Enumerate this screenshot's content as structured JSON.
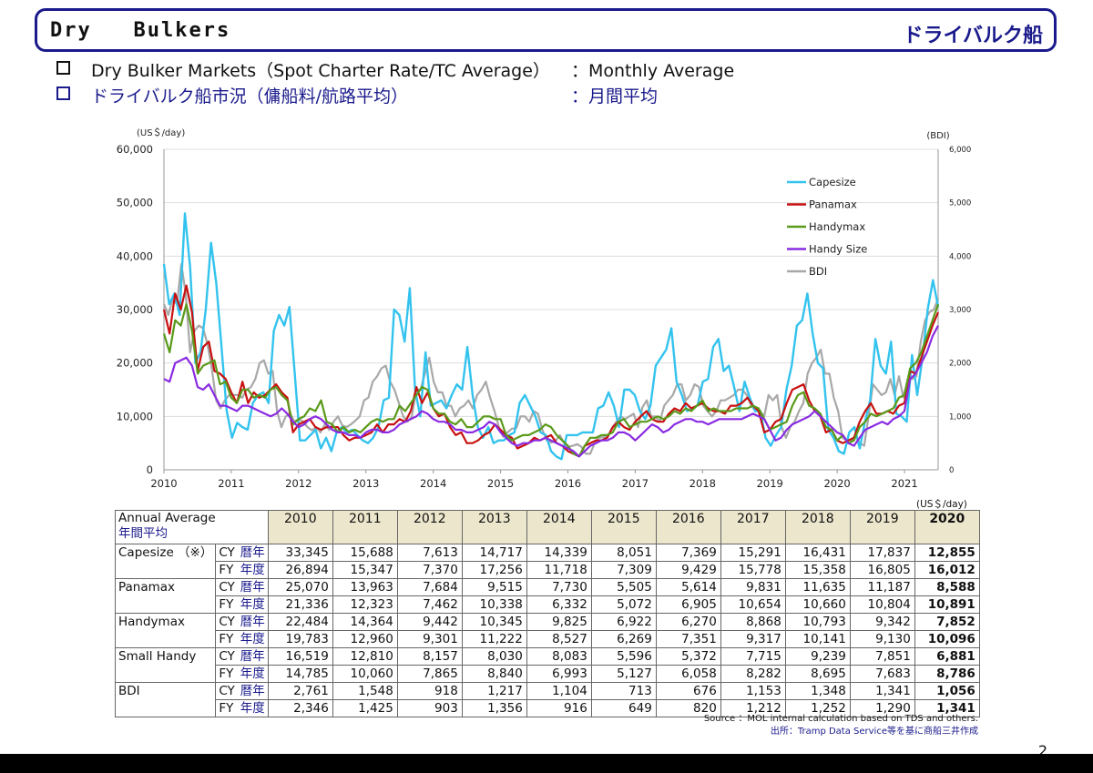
{
  "header": {
    "title_en": "Dry   Bulkers",
    "title_jp": "ドライバルク船"
  },
  "subtitle": {
    "line1_left": "Dry Bulker Markets（Spot Charter Rate/TC Average）",
    "line1_right": "：Monthly Average",
    "line2_left": "ドライバルク船市況（傭船料/航路平均）",
    "line2_right": "：月間平均"
  },
  "chart_data": {
    "type": "line",
    "left_unit": "(US＄/day)",
    "right_unit": "(BDI)",
    "left_ticks": [
      "0",
      "10,000",
      "20,000",
      "30,000",
      "40,000",
      "50,000",
      "60,000"
    ],
    "right_ticks": [
      "0",
      "1,000",
      "2,000",
      "3,000",
      "4,000",
      "5,000",
      "6,000"
    ],
    "x_ticks": [
      "2010",
      "2011",
      "2012",
      "2013",
      "2014",
      "2015",
      "2016",
      "2017",
      "2018",
      "2019",
      "2020",
      "2021"
    ],
    "ylim": [
      0,
      60000
    ],
    "y2lim": [
      0,
      6000
    ],
    "xlim": [
      2010,
      2021.5
    ],
    "legend_position": "top-right",
    "colors": {
      "Capesize": "#33c3ee",
      "Panamax": "#c81010",
      "Handymax": "#5a9a1a",
      "Handy Size": "#8a2be2",
      "BDI": "#a8a8a8"
    },
    "series": [
      {
        "name": "BDI",
        "axis": "right",
        "values": [
          3100,
          2900,
          3200,
          3100,
          3850,
          3300,
          2200,
          2600,
          2700,
          2650,
          2350,
          1900,
          1300,
          1150,
          1300,
          1400,
          1400,
          1400,
          1350,
          1500,
          1550,
          1700,
          2000,
          2050,
          1800,
          1850,
          1100,
          800,
          1000,
          1050,
          900,
          950,
          900,
          800,
          740,
          800,
          700,
          850,
          750,
          900,
          1000,
          830,
          800,
          850,
          920,
          1000,
          1300,
          1350,
          1650,
          1750,
          1900,
          1950,
          1650,
          1500,
          1250,
          1000,
          900,
          1000,
          1500,
          1500,
          1800,
          2100,
          1650,
          1450,
          1450,
          1200,
          1200,
          1000,
          1150,
          1200,
          1300,
          1150,
          1400,
          1500,
          1650,
          1350,
          1100,
          800,
          620,
          700,
          770,
          780,
          1000,
          1000,
          900,
          1100,
          1050,
          750,
          550,
          510,
          540,
          650,
          500,
          430,
          450,
          480,
          430,
          300,
          300,
          500,
          600,
          610,
          610,
          780,
          900,
          1000,
          950,
          1000,
          1050,
          800,
          1170,
          1300,
          1000,
          1000,
          900,
          1200,
          1300,
          1400,
          1600,
          1600,
          1300,
          1400,
          1600,
          1550,
          1200,
          1100,
          1000,
          1100,
          1300,
          1300,
          1350,
          1400,
          1500,
          1500,
          1400,
          1200,
          1100,
          1100,
          1000,
          1400,
          1300,
          1400,
          800,
          600,
          800,
          900,
          1100,
          1250,
          1800,
          2000,
          2100,
          2250,
          1800,
          1800,
          1350,
          1100,
          600,
          550,
          550,
          650,
          500,
          450,
          1000,
          1600,
          1500,
          1400,
          1450,
          1700,
          1400,
          1750,
          1350,
          1700,
          1700,
          1750,
          2400,
          2800,
          2950,
          3000,
          3200
        ]
      },
      {
        "name": "Capesize",
        "axis": "left",
        "values": [
          38500,
          31000,
          33000,
          29000,
          48000,
          38000,
          20000,
          22000,
          30000,
          42500,
          35000,
          23000,
          11000,
          6000,
          8800,
          8000,
          7500,
          12500,
          14000,
          14500,
          12500,
          26000,
          29000,
          27000,
          30500,
          18000,
          5500,
          5500,
          6500,
          7500,
          4000,
          6000,
          3500,
          7000,
          8000,
          7000,
          7500,
          6500,
          5500,
          5000,
          6000,
          8000,
          13000,
          13500,
          30000,
          29000,
          24000,
          34000,
          15000,
          10000,
          22000,
          12000,
          12500,
          13000,
          11500,
          14000,
          16000,
          15000,
          23000,
          14000,
          8000,
          6000,
          8000,
          5000,
          5500,
          5500,
          6500,
          7000,
          12500,
          14000,
          12000,
          10000,
          7000,
          6500,
          3500,
          2500,
          2000,
          6500,
          6500,
          6500,
          7000,
          7000,
          7000,
          11500,
          12000,
          14500,
          12000,
          8000,
          15000,
          15000,
          14000,
          11000,
          9500,
          12000,
          19500,
          21000,
          22500,
          26500,
          16500,
          14000,
          11000,
          11500,
          12000,
          16500,
          17000,
          23000,
          24500,
          18500,
          19500,
          15500,
          11000,
          16500,
          13500,
          11000,
          11000,
          6000,
          4500,
          6500,
          8000,
          15000,
          19500,
          27000,
          28000,
          33000,
          25500,
          20000,
          19000,
          7500,
          6000,
          3500,
          3000,
          7000,
          8000,
          4000,
          9000,
          13000,
          24500,
          19500,
          18000,
          24000,
          10500,
          10000,
          9000,
          21500,
          14000,
          21000,
          30000,
          35500,
          30500
        ]
      },
      {
        "name": "Panamax",
        "axis": "left",
        "values": [
          30000,
          25500,
          33000,
          30000,
          34500,
          29500,
          18500,
          23000,
          24000,
          18500,
          18000,
          17000,
          14500,
          12500,
          16500,
          12500,
          14500,
          13500,
          14000,
          15000,
          16000,
          14500,
          13500,
          7000,
          8500,
          9000,
          9500,
          8000,
          7500,
          8000,
          8000,
          8000,
          6500,
          5500,
          6000,
          6000,
          6500,
          7000,
          8500,
          7000,
          8500,
          8500,
          9500,
          9000,
          11000,
          15500,
          12500,
          14500,
          11500,
          10000,
          10500,
          8000,
          6500,
          7000,
          5000,
          5000,
          5500,
          6500,
          7000,
          8500,
          7500,
          6500,
          6000,
          4000,
          4500,
          5000,
          6000,
          5500,
          6000,
          6500,
          5000,
          4500,
          3500,
          3000,
          2500,
          4500,
          5000,
          5500,
          5500,
          6000,
          8000,
          9000,
          8000,
          7500,
          9000,
          10000,
          11000,
          9500,
          9000,
          9000,
          10500,
          11500,
          11000,
          12500,
          11500,
          12000,
          12500,
          11500,
          11000,
          11000,
          10500,
          12000,
          12000,
          12500,
          13500,
          12000,
          11000,
          7000,
          7500,
          9000,
          9500,
          12500,
          15000,
          15500,
          16000,
          13000,
          11000,
          10000,
          7000,
          7500,
          5500,
          5000,
          5500,
          6000,
          9000,
          11000,
          12500,
          10500,
          10500,
          11000,
          10500,
          12000,
          12500,
          18500,
          18000,
          21000,
          24000,
          27000,
          29500
        ]
      },
      {
        "name": "Handymax",
        "axis": "left",
        "values": [
          25500,
          22000,
          28000,
          27000,
          31000,
          26000,
          18000,
          19500,
          20000,
          20500,
          16000,
          16500,
          13500,
          12500,
          15000,
          15000,
          13500,
          14000,
          13500,
          15000,
          15500,
          14000,
          13000,
          8500,
          9500,
          10000,
          11500,
          11000,
          13000,
          9000,
          8500,
          7000,
          8000,
          7000,
          7500,
          7000,
          8000,
          9000,
          9500,
          9000,
          9500,
          9500,
          12000,
          11000,
          12500,
          14000,
          15500,
          15000,
          11500,
          10500,
          10500,
          9000,
          8500,
          9500,
          8000,
          8000,
          9000,
          10000,
          10000,
          9500,
          9500,
          6500,
          5500,
          6000,
          6500,
          6500,
          7000,
          7500,
          8500,
          8000,
          6500,
          5500,
          4500,
          3000,
          2500,
          4500,
          6000,
          6000,
          6500,
          6500,
          7000,
          9000,
          9500,
          8000,
          8500,
          9000,
          9000,
          9500,
          10000,
          9500,
          10000,
          11000,
          10500,
          11500,
          11000,
          12000,
          13000,
          11000,
          11500,
          11000,
          11000,
          11000,
          11500,
          11500,
          11500,
          12000,
          11500,
          9500,
          7500,
          8000,
          8500,
          9000,
          12000,
          14000,
          14500,
          12000,
          11500,
          10500,
          8000,
          7500,
          5500,
          6500,
          5000,
          5500,
          8000,
          9000,
          10500,
          10000,
          10500,
          11000,
          11500,
          13500,
          14000,
          19000,
          20000,
          22000,
          25000,
          28000,
          31000
        ]
      },
      {
        "name": "Handy Size",
        "axis": "left",
        "values": [
          17000,
          16500,
          20000,
          20500,
          21000,
          19500,
          15500,
          15000,
          16000,
          14000,
          12000,
          12000,
          11500,
          11000,
          12000,
          12000,
          11500,
          11000,
          10500,
          10000,
          10500,
          11500,
          10500,
          9000,
          8000,
          8500,
          9500,
          10000,
          9500,
          8500,
          7500,
          7000,
          7000,
          6500,
          6500,
          6000,
          7000,
          7500,
          7500,
          7000,
          7000,
          7500,
          8500,
          9000,
          9500,
          10000,
          11000,
          10500,
          9500,
          9000,
          9000,
          8500,
          7500,
          7500,
          7000,
          7000,
          7500,
          8000,
          9000,
          8500,
          7000,
          6000,
          5000,
          4500,
          5000,
          5000,
          5500,
          5500,
          6000,
          5500,
          5000,
          4500,
          4000,
          3500,
          2500,
          3500,
          4500,
          5000,
          5500,
          5500,
          6000,
          7000,
          7000,
          6500,
          5500,
          6500,
          7500,
          8500,
          8000,
          7000,
          7500,
          8500,
          9000,
          9500,
          9500,
          9000,
          9000,
          8500,
          9000,
          9500,
          9500,
          9500,
          9500,
          9500,
          10000,
          10500,
          10000,
          9500,
          7500,
          5500,
          6000,
          7500,
          8500,
          9000,
          9500,
          10000,
          11000,
          10000,
          9000,
          8000,
          7000,
          6500,
          5000,
          4500,
          6000,
          7500,
          8000,
          8500,
          9000,
          8500,
          9500,
          10000,
          11000,
          17000,
          18000,
          20000,
          22000,
          25000,
          27000
        ]
      }
    ]
  },
  "table": {
    "unit": "(US＄/day)",
    "header_label_en": "Annual Average",
    "header_label_jp": "年間平均",
    "years": [
      "2010",
      "2011",
      "2012",
      "2013",
      "2014",
      "2015",
      "2016",
      "2017",
      "2018",
      "2019",
      "2020"
    ],
    "groups": [
      {
        "name": "Capesize （※）",
        "rows": [
          {
            "code": "CY",
            "jp": "暦年",
            "values": [
              "33,345",
              "15,688",
              "7,613",
              "14,717",
              "14,339",
              "8,051",
              "7,369",
              "15,291",
              "16,431",
              "17,837",
              "12,855"
            ]
          },
          {
            "code": "FY",
            "jp": "年度",
            "values": [
              "26,894",
              "15,347",
              "7,370",
              "17,256",
              "11,718",
              "7,309",
              "9,429",
              "15,778",
              "15,358",
              "16,805",
              "16,012"
            ]
          }
        ]
      },
      {
        "name": "Panamax",
        "rows": [
          {
            "code": "CY",
            "jp": "暦年",
            "values": [
              "25,070",
              "13,963",
              "7,684",
              "9,515",
              "7,730",
              "5,505",
              "5,614",
              "9,831",
              "11,635",
              "11,187",
              "8,588"
            ]
          },
          {
            "code": "FY",
            "jp": "年度",
            "values": [
              "21,336",
              "12,323",
              "7,462",
              "10,338",
              "6,332",
              "5,072",
              "6,905",
              "10,654",
              "10,660",
              "10,804",
              "10,891"
            ]
          }
        ]
      },
      {
        "name": "Handymax",
        "rows": [
          {
            "code": "CY",
            "jp": "暦年",
            "values": [
              "22,484",
              "14,364",
              "9,442",
              "10,345",
              "9,825",
              "6,922",
              "6,270",
              "8,868",
              "10,793",
              "9,342",
              "7,852"
            ]
          },
          {
            "code": "FY",
            "jp": "年度",
            "values": [
              "19,783",
              "12,960",
              "9,301",
              "11,222",
              "8,527",
              "6,269",
              "7,351",
              "9,317",
              "10,141",
              "9,130",
              "10,096"
            ]
          }
        ]
      },
      {
        "name": "Small Handy",
        "rows": [
          {
            "code": "CY",
            "jp": "暦年",
            "values": [
              "16,519",
              "12,810",
              "8,157",
              "8,030",
              "8,083",
              "5,596",
              "5,372",
              "7,715",
              "9,239",
              "7,851",
              "6,881"
            ]
          },
          {
            "code": "FY",
            "jp": "年度",
            "values": [
              "14,785",
              "10,060",
              "7,865",
              "8,840",
              "6,993",
              "5,127",
              "6,058",
              "8,282",
              "8,695",
              "7,683",
              "8,786"
            ]
          }
        ]
      },
      {
        "name": "BDI",
        "rows": [
          {
            "code": "CY",
            "jp": "暦年",
            "values": [
              "2,761",
              "1,548",
              "918",
              "1,217",
              "1,104",
              "713",
              "676",
              "1,153",
              "1,348",
              "1,341",
              "1,056"
            ]
          },
          {
            "code": "FY",
            "jp": "年度",
            "values": [
              "2,346",
              "1,425",
              "903",
              "1,356",
              "916",
              "649",
              "820",
              "1,212",
              "1,252",
              "1,290",
              "1,341"
            ]
          }
        ]
      }
    ]
  },
  "notes": {
    "source_en": "Source ：MOL internal calculation based on TDS and others.",
    "source_jp": "出所：Tramp Data Service等を基に商船三井作成"
  },
  "page_number": "2"
}
